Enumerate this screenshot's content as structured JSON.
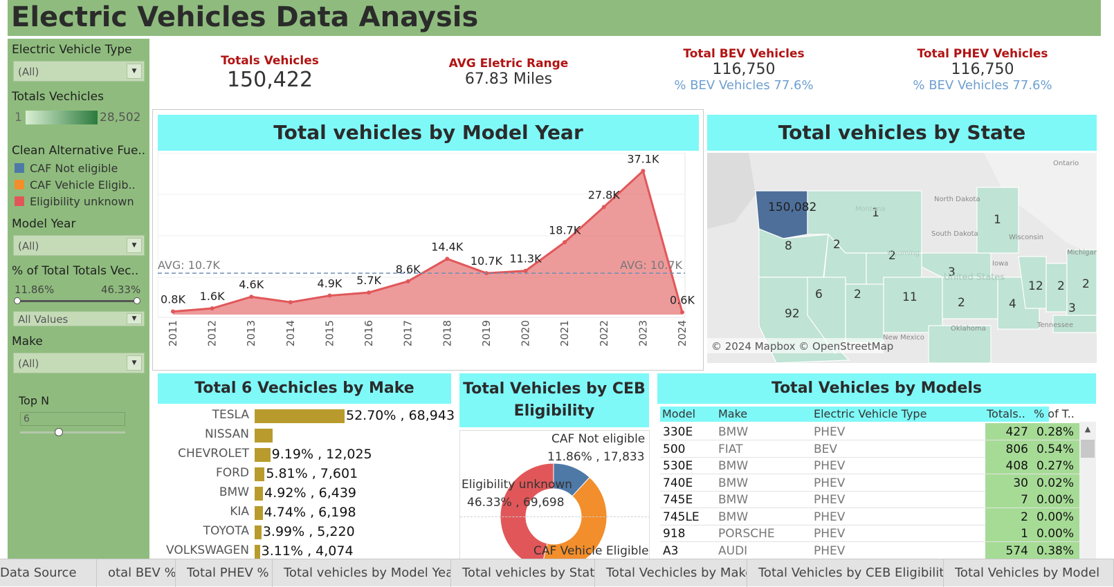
{
  "title": "Electric Vehicles Data Anaysis",
  "sidebar": {
    "ev_type_label": "Electric Vehicle Type",
    "ev_type_value": "(All)",
    "totals_label": "Totals Vechicles",
    "totals_min": "1",
    "totals_max": "28,502",
    "cafv_label": "Clean Alternative Fue..",
    "cafv_items": [
      {
        "label": "CAF Not eligible",
        "color": "#4e79a7"
      },
      {
        "label": "CAF Vehicle Eligib..",
        "color": "#f28e2b"
      },
      {
        "label": "Eligibility unknown",
        "color": "#e15759"
      }
    ],
    "model_year_label": "Model Year",
    "model_year_value": "(All)",
    "pct_label": "% of Total Totals Vec..",
    "pct_min": "11.86%",
    "pct_max": "46.33%",
    "pct_mode": "All Values",
    "make_label": "Make",
    "make_value": "(All)",
    "topn_label": "Top N",
    "topn_value": "6"
  },
  "kpis": {
    "total_label": "Totals Vehicles",
    "total_value": "150,422",
    "range_label": "AVG Eletric Range",
    "range_value": "67.83 Miles",
    "bev_label": "Total BEV Vehicles",
    "bev_value": "116,750",
    "bev_sub": "% BEV Vehicles 77.6%",
    "phev_label": "Total PHEV Vehicles",
    "phev_value": "116,750",
    "phev_sub": "% BEV Vehicles 77.6%"
  },
  "year_chart": {
    "title": "Total vehicles by Model Year",
    "avg_label_left": "AVG: 10.7K",
    "avg_label_right": "AVG: 10.7K"
  },
  "chart_data": [
    {
      "type": "area",
      "title": "Total vehicles by Model Year",
      "x": [
        "2011",
        "2012",
        "2013",
        "2014",
        "2015",
        "2016",
        "2017",
        "2018",
        "2019",
        "2020",
        "2021",
        "2022",
        "2023",
        "2024"
      ],
      "values": [
        0.8,
        1.6,
        4.6,
        3.2,
        4.9,
        5.7,
        8.6,
        14.4,
        10.7,
        11.3,
        18.7,
        27.8,
        37.1,
        0.6
      ],
      "labels": [
        "0.8K",
        "1.6K",
        "4.6K",
        "",
        "4.9K",
        "5.7K",
        "8.6K",
        "14.4K",
        "10.7K",
        "11.3K",
        "18.7K",
        "27.8K",
        "37.1K",
        "0.6K"
      ],
      "average": 10.7,
      "color": "#e15759",
      "ylim": [
        0,
        40
      ]
    },
    {
      "type": "bar",
      "title": "Total 6 Vechicles by Make",
      "categories": [
        "TESLA",
        "NISSAN",
        "CHEVROLET",
        "FORD",
        "BMW",
        "KIA",
        "TOYOTA",
        "VOLKSWAGEN"
      ],
      "values": [
        68943,
        13998,
        12025,
        7601,
        6439,
        6198,
        5220,
        4074
      ],
      "labels": [
        "52.70% , 68,943",
        "",
        "9.19% , 12,025",
        "5.81% , 7,601",
        "4.92% , 6,439",
        "4.74% , 6,198",
        "3.99% , 5,220",
        "3.11% , 4,074"
      ],
      "color": "#b89b2c"
    },
    {
      "type": "pie",
      "title": "Total Vehicles by CEB Eligibility",
      "categories": [
        "CAF Not eligible",
        "CAF Vehicle Eligible",
        "Eligibility unknown"
      ],
      "values": [
        17833,
        62891,
        69698
      ],
      "percents": [
        "11.86%",
        "",
        "46.33%"
      ],
      "colors": [
        "#4e79a7",
        "#f28e2b",
        "#e15759"
      ]
    }
  ],
  "state_map": {
    "title": "Total vehicles by State",
    "credit": "© 2024 Mapbox © OpenStreetMap",
    "wa_value": "150,082",
    "state_values": [
      "1",
      "8",
      "2",
      "2",
      "6",
      "2",
      "11",
      "92",
      "3",
      "2",
      "4",
      "12",
      "2",
      "2",
      "3",
      "1"
    ],
    "place_names": [
      "Ontario",
      "North Dakota",
      "South Dakota",
      "Iowa",
      "Wisconsin",
      "Michigan",
      "Oklahoma",
      "Tennessee",
      "New Mexico",
      "United States",
      "Montana",
      "Wyoming"
    ]
  },
  "make_chart": {
    "title": "Total 6 Vechicles by Make"
  },
  "ceb_chart": {
    "title_line1": "Total Vehicles by CEB",
    "title_line2": "Eligibility",
    "lbl_not_eligible": "CAF Not eligible",
    "lbl_not_eligible_val": "11.86% ,  17,833",
    "lbl_unknown": "Eligibility unknown",
    "lbl_unknown_val": "46.33% ,  69,698",
    "lbl_eligible": "CAF Vehicle Eligible"
  },
  "models_table": {
    "title": "Total Vehicles by Models",
    "headers": [
      "Model",
      "Make",
      "Electric Vehicle Type",
      "Totals..",
      "% of T.."
    ],
    "rows": [
      [
        "330E",
        "BMW",
        "PHEV",
        "427",
        "0.28%"
      ],
      [
        "500",
        "FIAT",
        "BEV",
        "806",
        "0.54%"
      ],
      [
        "530E",
        "BMW",
        "PHEV",
        "408",
        "0.27%"
      ],
      [
        "740E",
        "BMW",
        "PHEV",
        "30",
        "0.02%"
      ],
      [
        "745E",
        "BMW",
        "PHEV",
        "7",
        "0.00%"
      ],
      [
        "745LE",
        "BMW",
        "PHEV",
        "2",
        "0.00%"
      ],
      [
        "918",
        "PORSCHE",
        "PHEV",
        "1",
        "0.00%"
      ],
      [
        "A3",
        "AUDI",
        "PHEV",
        "574",
        "0.38%"
      ]
    ]
  },
  "tabs": [
    "Data Source",
    "otal BEV %",
    "Total PHEV %",
    "Total vehicles by Model Year",
    "Total vehicles by State",
    "Total Vechicles by Make",
    "Total Vehicles by CEB Eligibility",
    "Total Vehicles by Model"
  ]
}
